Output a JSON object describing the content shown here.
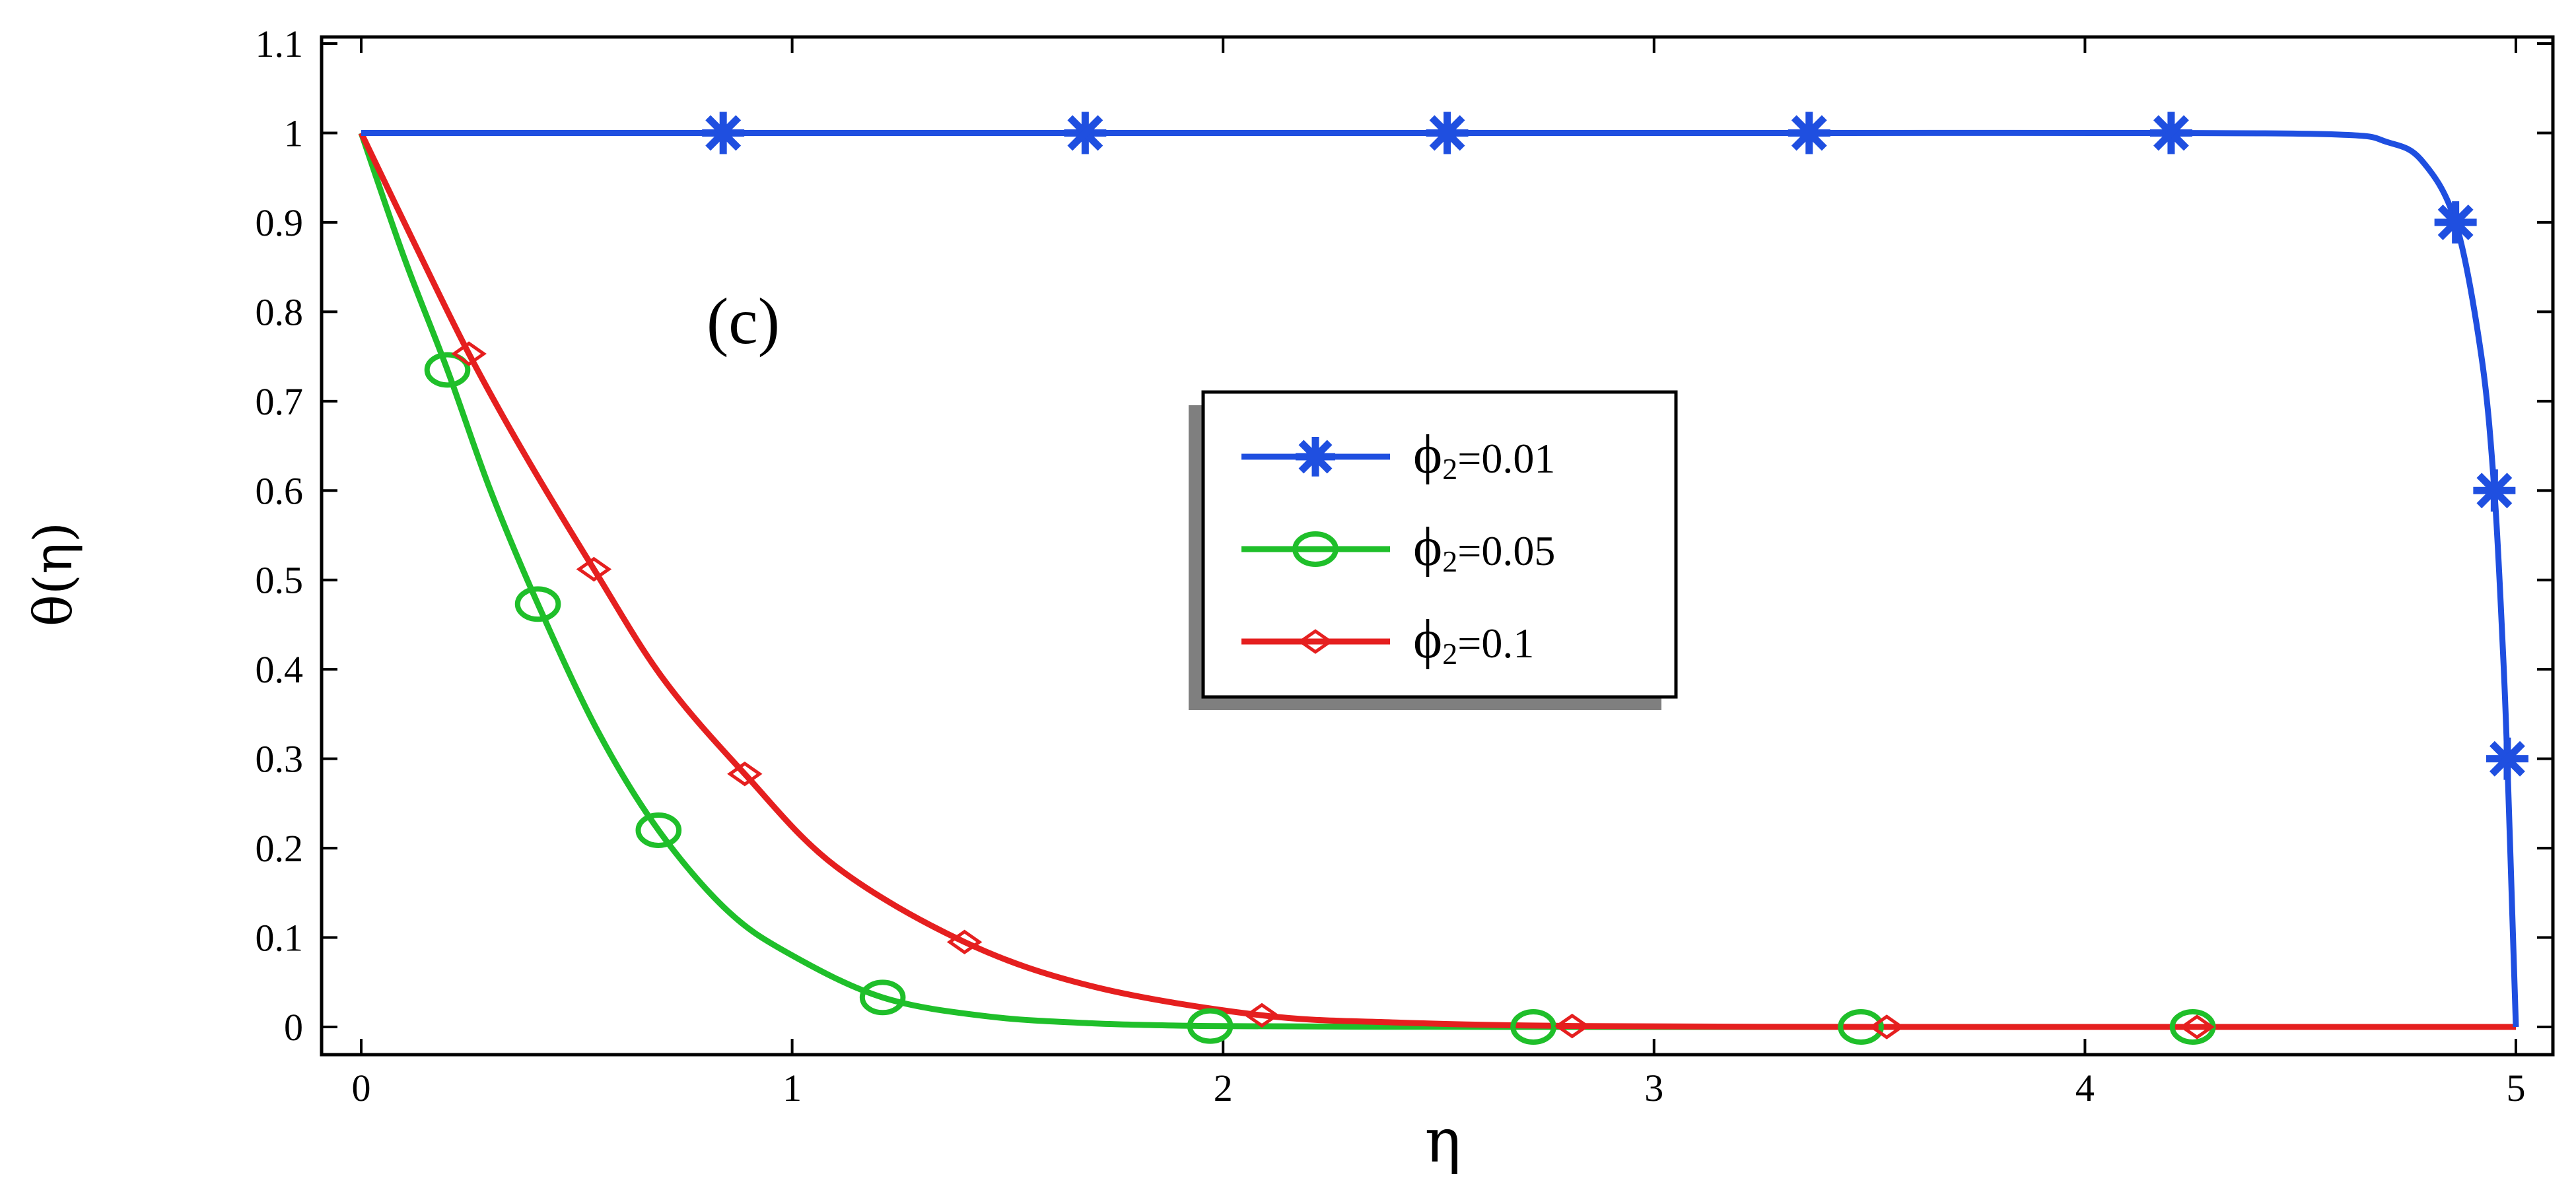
{
  "chart_data": {
    "type": "line",
    "annotation": "(c)",
    "xlabel": "η",
    "ylabel": "θ(η)",
    "xlim": [
      0,
      5
    ],
    "ylim": [
      0,
      1.1
    ],
    "x_ticks": [
      "0",
      "1",
      "2",
      "3",
      "4",
      "5"
    ],
    "y_ticks": [
      "0",
      "0.1",
      "0.2",
      "0.3",
      "0.4",
      "0.5",
      "0.6",
      "0.7",
      "0.8",
      "0.9",
      "1",
      "1.1"
    ],
    "legend_position": "center",
    "series": [
      {
        "name": "ϕ₂=0.01",
        "legend_symbol": "ϕ",
        "legend_sub": "2",
        "legend_value": "=0.01",
        "color": "#1f4fe0",
        "marker": "asterisk",
        "x": [
          0,
          0.84,
          1.68,
          2.52,
          3.36,
          4.2,
          4.6,
          4.7,
          4.78,
          4.86,
          4.92,
          4.95,
          4.97,
          4.98,
          4.99,
          5.0
        ],
        "y": [
          1,
          1,
          1,
          1,
          1,
          1,
          0.998,
          0.99,
          0.97,
          0.9,
          0.75,
          0.6,
          0.42,
          0.3,
          0.15,
          0
        ],
        "markers_x": [
          0.84,
          1.68,
          2.52,
          3.36,
          4.2,
          4.86,
          4.95,
          4.98
        ],
        "markers_y": [
          1,
          1,
          1,
          1,
          1,
          0.9,
          0.6,
          0.3
        ]
      },
      {
        "name": "ϕ₂=0.05",
        "legend_symbol": "ϕ",
        "legend_sub": "2",
        "legend_value": "=0.05",
        "color": "#1fbf2a",
        "marker": "circle",
        "x": [
          0,
          0.1,
          0.2,
          0.3,
          0.41,
          0.55,
          0.69,
          0.85,
          1.0,
          1.21,
          1.45,
          1.7,
          1.97,
          2.3,
          2.72,
          3.48,
          4.25,
          5.0
        ],
        "y": [
          1,
          0.86,
          0.735,
          0.6,
          0.473,
          0.33,
          0.22,
          0.13,
          0.08,
          0.033,
          0.012,
          0.004,
          0.001,
          0.0003,
          0,
          0,
          0,
          0
        ],
        "markers_x": [
          0.2,
          0.41,
          0.69,
          1.21,
          1.97,
          2.72,
          3.48,
          4.25
        ],
        "markers_y": [
          0.735,
          0.473,
          0.22,
          0.033,
          0.001,
          0,
          0,
          0
        ]
      },
      {
        "name": "ϕ₂=0.1",
        "legend_symbol": "ϕ",
        "legend_sub": "2",
        "legend_value": "=0.1",
        "color": "#e51f1f",
        "marker": "diamond",
        "x": [
          0,
          0.12,
          0.25,
          0.38,
          0.54,
          0.7,
          0.89,
          1.1,
          1.4,
          1.7,
          2.09,
          2.4,
          2.81,
          3.54,
          4.26,
          5.0
        ],
        "y": [
          1,
          0.88,
          0.753,
          0.64,
          0.512,
          0.39,
          0.283,
          0.18,
          0.095,
          0.045,
          0.013,
          0.005,
          0.001,
          0,
          0,
          0
        ],
        "markers_x": [
          0.25,
          0.54,
          0.89,
          1.4,
          2.09,
          2.81,
          3.54,
          4.26
        ],
        "markers_y": [
          0.753,
          0.512,
          0.283,
          0.095,
          0.013,
          0.001,
          0,
          0
        ]
      }
    ]
  }
}
